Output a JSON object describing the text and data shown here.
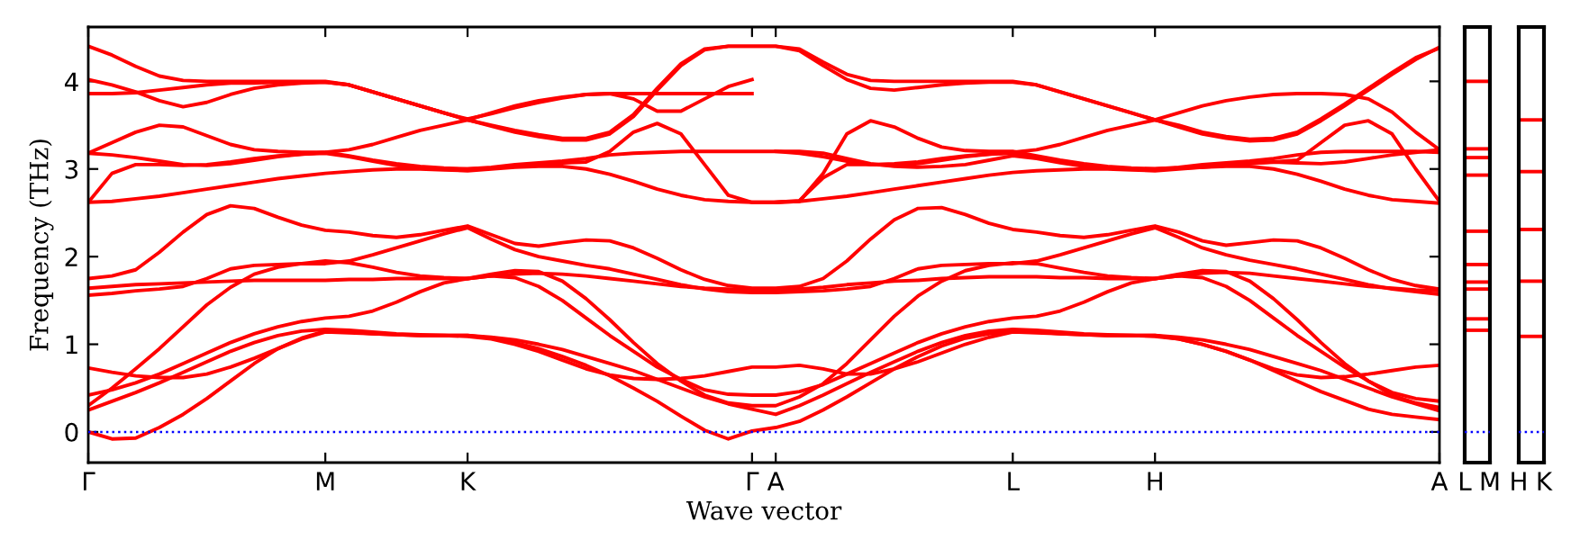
{
  "chart_data": [
    {
      "type": "line",
      "xlabel": "Wave vector",
      "ylabel": "Frequency (THz)",
      "ylim": [
        -0.35,
        4.62
      ],
      "yticks": [
        0,
        1,
        2,
        3,
        4
      ],
      "categories": [
        "Γ",
        null,
        null,
        null,
        null,
        null,
        null,
        null,
        null,
        null,
        "M",
        null,
        null,
        null,
        null,
        null,
        "K",
        null,
        null,
        null,
        null,
        null,
        null,
        null,
        null,
        null,
        null,
        null,
        "Γ",
        "A",
        null,
        null,
        null,
        null,
        null,
        null,
        null,
        null,
        null,
        "L",
        null,
        null,
        null,
        null,
        null,
        "H",
        null,
        null,
        null,
        null,
        null,
        null,
        null,
        null,
        null,
        null,
        null,
        "A"
      ],
      "ref_lines": [
        {
          "axis": "y",
          "value": 0,
          "color": "#0000ff",
          "line_style": "dotted"
        }
      ],
      "series": [
        {
          "color": "#ff0000",
          "values": [
            4.4,
            4.3,
            4.17,
            4.06,
            4.01,
            4.0,
            4.0,
            4.0,
            4.0,
            4.0,
            4.0,
            3.96,
            3.88,
            3.8,
            3.72,
            3.64,
            3.56,
            3.49,
            3.42,
            3.37,
            3.33,
            3.33,
            3.4,
            3.6,
            3.9,
            4.18,
            4.36,
            4.4,
            4.4,
            4.4,
            4.37,
            4.22,
            4.08,
            4.01,
            4.0,
            4.0,
            4.0,
            4.0,
            4.0,
            4.0,
            3.96,
            3.88,
            3.8,
            3.72,
            3.64,
            3.56,
            3.48,
            3.4,
            3.35,
            3.32,
            3.33,
            3.4,
            3.55,
            3.72,
            3.9,
            4.08,
            4.25,
            4.39
          ]
        },
        {
          "color": "#ff0000",
          "values": [
            4.02,
            3.96,
            3.88,
            3.78,
            3.71,
            3.76,
            3.85,
            3.92,
            3.96,
            3.98,
            3.99,
            3.96,
            3.88,
            3.8,
            3.72,
            3.64,
            3.56,
            3.5,
            3.44,
            3.39,
            3.35,
            3.35,
            3.42,
            3.62,
            3.92,
            4.2,
            4.37,
            4.4,
            4.4,
            4.4,
            4.35,
            4.18,
            4.02,
            3.92,
            3.9,
            3.93,
            3.96,
            3.98,
            3.99,
            3.99,
            3.96,
            3.88,
            3.8,
            3.72,
            3.64,
            3.56,
            3.5,
            3.42,
            3.37,
            3.34,
            3.35,
            3.42,
            3.57,
            3.74,
            3.92,
            4.1,
            4.27,
            4.38
          ]
        },
        {
          "color": "#ff0000",
          "values": [
            3.86,
            3.86,
            3.87,
            3.9,
            3.93,
            3.96,
            3.98,
            3.98,
            3.99,
            3.99,
            3.99,
            3.96,
            3.88,
            3.8,
            3.72,
            3.64,
            3.57,
            3.63,
            3.7,
            3.76,
            3.81,
            3.85,
            3.86,
            3.8,
            3.66,
            3.66,
            3.8,
            3.94,
            4.02,
            null,
            null,
            null,
            null,
            null,
            null,
            null,
            null,
            null,
            null,
            null,
            null,
            null,
            null,
            null,
            null,
            null,
            null,
            null,
            null,
            null,
            null,
            null,
            null,
            null,
            null,
            null,
            null,
            null
          ]
        },
        {
          "color": "#ff0000",
          "values": [
            3.18,
            3.16,
            3.13,
            3.09,
            3.05,
            3.04,
            3.06,
            3.1,
            3.14,
            3.17,
            3.19,
            3.22,
            3.28,
            3.36,
            3.44,
            3.5,
            3.56,
            3.64,
            3.72,
            3.78,
            3.82,
            3.85,
            3.86,
            3.86,
            3.86,
            3.86,
            3.86,
            3.86,
            3.86,
            null,
            null,
            null,
            null,
            null,
            null,
            null,
            null,
            null,
            null,
            null,
            null,
            null,
            null,
            null,
            null,
            null,
            null,
            null,
            null,
            null,
            null,
            null,
            null,
            null,
            null,
            null,
            null,
            null
          ]
        },
        {
          "color": "#ff0000",
          "values": [
            null,
            null,
            null,
            null,
            null,
            null,
            null,
            null,
            null,
            null,
            null,
            null,
            null,
            null,
            null,
            null,
            null,
            null,
            null,
            null,
            null,
            null,
            null,
            null,
            null,
            null,
            null,
            null,
            null,
            2.62,
            2.63,
            2.95,
            3.4,
            3.55,
            3.48,
            3.35,
            3.25,
            3.21,
            3.2,
            3.2,
            3.15,
            3.1,
            3.06,
            3.03,
            3.01,
            3.0,
            3.01,
            3.03,
            3.05,
            3.07,
            3.08,
            3.1,
            3.3,
            3.5,
            3.55,
            3.4,
            3.0,
            2.63
          ]
        },
        {
          "color": "#ff0000",
          "values": [
            null,
            null,
            null,
            null,
            null,
            null,
            null,
            null,
            null,
            null,
            null,
            null,
            null,
            null,
            null,
            null,
            null,
            null,
            null,
            null,
            null,
            null,
            null,
            null,
            null,
            null,
            null,
            null,
            null,
            3.2,
            3.18,
            3.14,
            3.09,
            3.05,
            3.04,
            3.06,
            3.1,
            3.14,
            3.17,
            3.19,
            3.22,
            3.28,
            3.36,
            3.44,
            3.5,
            3.56,
            3.64,
            3.72,
            3.78,
            3.82,
            3.85,
            3.86,
            3.86,
            3.85,
            3.8,
            3.65,
            3.42,
            3.22
          ]
        },
        {
          "color": "#ff0000",
          "values": [
            3.18,
            3.3,
            3.42,
            3.5,
            3.48,
            3.38,
            3.28,
            3.22,
            3.2,
            3.19,
            3.19,
            3.15,
            3.1,
            3.06,
            3.03,
            3.01,
            3.0,
            3.01,
            3.03,
            3.05,
            3.07,
            3.08,
            3.2,
            3.42,
            3.52,
            3.4,
            3.05,
            2.7,
            2.62,
            2.62,
            2.64,
            2.9,
            3.05,
            3.05,
            3.06,
            3.08,
            3.12,
            3.15,
            3.17,
            3.18,
            3.14,
            3.09,
            3.04,
            3.01,
            3.0,
            3.0,
            3.02,
            3.05,
            3.07,
            3.09,
            3.12,
            3.16,
            3.19,
            3.2,
            3.2,
            3.2,
            3.2,
            3.19
          ]
        },
        {
          "color": "#ff0000",
          "values": [
            2.62,
            2.95,
            3.05,
            3.05,
            3.04,
            3.05,
            3.08,
            3.12,
            3.15,
            3.17,
            3.18,
            3.14,
            3.09,
            3.04,
            3.01,
            3.0,
            3.0,
            3.02,
            3.05,
            3.07,
            3.09,
            3.12,
            3.16,
            3.18,
            3.19,
            3.2,
            3.2,
            3.2,
            3.2,
            3.2,
            3.2,
            3.18,
            3.12,
            3.06,
            3.03,
            3.02,
            3.03,
            3.05,
            3.1,
            3.15,
            3.12,
            3.07,
            3.03,
            3.01,
            3.0,
            3.0,
            3.01,
            3.02,
            3.04,
            3.06,
            3.08,
            3.07,
            3.06,
            3.08,
            3.12,
            3.16,
            3.19,
            3.22
          ]
        },
        {
          "color": "#ff0000",
          "values": [
            2.62,
            2.63,
            2.66,
            2.69,
            2.73,
            2.77,
            2.81,
            2.85,
            2.89,
            2.92,
            2.95,
            2.97,
            2.99,
            3.0,
            3.0,
            2.99,
            2.98,
            3.0,
            3.02,
            3.03,
            3.03,
            3.0,
            2.94,
            2.86,
            2.77,
            2.7,
            2.65,
            2.63,
            2.62,
            2.62,
            2.63,
            2.66,
            2.69,
            2.73,
            2.77,
            2.81,
            2.85,
            2.89,
            2.93,
            2.96,
            2.98,
            2.99,
            3.0,
            3.0,
            2.99,
            2.98,
            3.0,
            3.02,
            3.03,
            3.03,
            3.0,
            2.94,
            2.86,
            2.77,
            2.7,
            2.65,
            2.63,
            2.61
          ]
        },
        {
          "color": "#ff0000",
          "values": [
            1.75,
            1.78,
            1.85,
            2.05,
            2.28,
            2.48,
            2.58,
            2.55,
            2.45,
            2.36,
            2.3,
            2.28,
            2.24,
            2.22,
            2.25,
            2.3,
            2.35,
            2.25,
            2.15,
            2.12,
            2.16,
            2.19,
            2.18,
            2.1,
            1.98,
            1.85,
            1.74,
            1.67,
            1.64,
            1.64,
            1.66,
            1.75,
            1.95,
            2.2,
            2.42,
            2.55,
            2.56,
            2.48,
            2.38,
            2.31,
            2.28,
            2.24,
            2.22,
            2.25,
            2.3,
            2.35,
            2.28,
            2.18,
            2.13,
            2.16,
            2.19,
            2.18,
            2.1,
            1.98,
            1.85,
            1.74,
            1.67,
            1.63
          ]
        },
        {
          "color": "#ff0000",
          "values": [
            1.56,
            1.58,
            1.61,
            1.63,
            1.66,
            1.75,
            1.86,
            1.9,
            1.91,
            1.92,
            1.92,
            1.95,
            2.02,
            2.1,
            2.18,
            2.26,
            2.33,
            2.2,
            2.08,
            2.0,
            1.95,
            1.9,
            1.86,
            1.8,
            1.74,
            1.68,
            1.63,
            1.6,
            1.59,
            1.59,
            1.6,
            1.61,
            1.63,
            1.66,
            1.75,
            1.86,
            1.9,
            1.91,
            1.92,
            1.92,
            1.95,
            2.02,
            2.1,
            2.18,
            2.26,
            2.33,
            2.22,
            2.1,
            2.02,
            1.96,
            1.91,
            1.86,
            1.8,
            1.74,
            1.68,
            1.63,
            1.6,
            1.57
          ]
        },
        {
          "color": "#ff0000",
          "values": [
            1.64,
            1.66,
            1.68,
            1.69,
            1.7,
            1.71,
            1.72,
            1.73,
            1.73,
            1.73,
            1.73,
            1.74,
            1.74,
            1.75,
            1.75,
            1.75,
            1.75,
            1.78,
            1.8,
            1.81,
            1.8,
            1.78,
            1.75,
            1.72,
            1.69,
            1.66,
            1.64,
            1.63,
            1.62,
            1.62,
            1.63,
            1.65,
            1.68,
            1.7,
            1.72,
            1.73,
            1.75,
            1.76,
            1.77,
            1.77,
            1.77,
            1.76,
            1.76,
            1.75,
            1.75,
            1.75,
            1.78,
            1.81,
            1.82,
            1.81,
            1.78,
            1.75,
            1.72,
            1.69,
            1.66,
            1.64,
            1.62,
            1.61
          ]
        },
        {
          "color": "#ff0000",
          "values": [
            0.3,
            0.5,
            0.72,
            0.95,
            1.2,
            1.45,
            1.65,
            1.8,
            1.88,
            1.92,
            1.95,
            1.93,
            1.88,
            1.82,
            1.78,
            1.76,
            1.75,
            1.8,
            1.84,
            1.83,
            1.72,
            1.52,
            1.28,
            1.02,
            0.78,
            0.58,
            0.42,
            0.33,
            0.3,
            0.3,
            0.4,
            0.55,
            0.78,
            1.05,
            1.32,
            1.55,
            1.72,
            1.84,
            1.9,
            1.93,
            1.92,
            1.87,
            1.82,
            1.78,
            1.76,
            1.75,
            1.8,
            1.84,
            1.83,
            1.72,
            1.52,
            1.28,
            1.02,
            0.78,
            0.58,
            0.42,
            0.33,
            0.28
          ]
        },
        {
          "color": "#ff0000",
          "values": [
            0.42,
            0.48,
            0.56,
            0.66,
            0.78,
            0.9,
            1.02,
            1.12,
            1.2,
            1.26,
            1.3,
            1.32,
            1.38,
            1.48,
            1.6,
            1.7,
            1.75,
            1.78,
            1.76,
            1.66,
            1.5,
            1.3,
            1.1,
            0.92,
            0.74,
            0.6,
            0.48,
            0.43,
            0.42,
            0.42,
            0.46,
            0.54,
            0.66,
            0.78,
            0.9,
            1.02,
            1.12,
            1.2,
            1.26,
            1.3,
            1.32,
            1.38,
            1.48,
            1.6,
            1.7,
            1.75,
            1.78,
            1.76,
            1.66,
            1.5,
            1.3,
            1.1,
            0.92,
            0.74,
            0.58,
            0.45,
            0.38,
            0.35
          ]
        },
        {
          "color": "#ff0000",
          "values": [
            0.25,
            0.35,
            0.45,
            0.56,
            0.68,
            0.8,
            0.92,
            1.02,
            1.1,
            1.15,
            1.17,
            1.16,
            1.14,
            1.12,
            1.11,
            1.1,
            1.1,
            1.08,
            1.05,
            1.0,
            0.94,
            0.86,
            0.78,
            0.7,
            0.6,
            0.5,
            0.4,
            0.32,
            0.26,
            0.2,
            0.3,
            0.42,
            0.55,
            0.68,
            0.8,
            0.92,
            1.02,
            1.1,
            1.15,
            1.17,
            1.16,
            1.14,
            1.12,
            1.11,
            1.1,
            1.1,
            1.08,
            1.05,
            1.0,
            0.94,
            0.86,
            0.78,
            0.7,
            0.6,
            0.5,
            0.4,
            0.32,
            0.24
          ]
        },
        {
          "color": "#ff0000",
          "values": [
            0.0,
            -0.08,
            -0.07,
            0.05,
            0.2,
            0.38,
            0.58,
            0.78,
            0.95,
            1.07,
            1.15,
            1.14,
            1.12,
            1.11,
            1.1,
            1.1,
            1.1,
            1.07,
            1.02,
            0.95,
            0.86,
            0.76,
            0.64,
            0.5,
            0.35,
            0.18,
            0.02,
            -0.08,
            0.01,
            0.05,
            0.12,
            0.25,
            0.4,
            0.56,
            0.72,
            0.86,
            0.98,
            1.07,
            1.12,
            1.15,
            1.14,
            1.12,
            1.11,
            1.1,
            1.1,
            1.1,
            1.06,
            1.0,
            0.92,
            0.82,
            0.7,
            0.58,
            0.46,
            0.36,
            0.26,
            0.2,
            0.17,
            0.14
          ]
        },
        {
          "color": "#ff0000",
          "values": [
            0.73,
            0.68,
            0.64,
            0.62,
            0.62,
            0.66,
            0.74,
            0.84,
            0.95,
            1.06,
            1.14,
            1.13,
            1.12,
            1.11,
            1.1,
            1.1,
            1.09,
            1.06,
            1.0,
            0.92,
            0.82,
            0.72,
            0.65,
            0.61,
            0.6,
            0.61,
            0.64,
            0.69,
            0.74,
            0.74,
            0.76,
            0.72,
            0.66,
            0.66,
            0.72,
            0.8,
            0.9,
            1.0,
            1.08,
            1.14,
            1.13,
            1.12,
            1.11,
            1.1,
            1.1,
            1.09,
            1.06,
            1.0,
            0.92,
            0.82,
            0.72,
            0.65,
            0.62,
            0.63,
            0.66,
            0.7,
            0.74,
            0.76
          ]
        }
      ]
    },
    {
      "type": "line",
      "tick_labels": "x",
      "ylim": [
        -0.35,
        4.62
      ],
      "categories": [
        "L",
        "M"
      ],
      "ref_lines": [
        {
          "axis": "y",
          "value": 0,
          "color": "#0000ff",
          "line_style": "dotted"
        }
      ],
      "series": [
        {
          "color": "#ff0000",
          "values": [
            4.0,
            4.0
          ]
        },
        {
          "color": "#ff0000",
          "values": [
            3.23,
            3.23
          ]
        },
        {
          "color": "#ff0000",
          "values": [
            3.13,
            3.13
          ]
        },
        {
          "color": "#ff0000",
          "values": [
            2.93,
            2.93
          ]
        },
        {
          "color": "#ff0000",
          "values": [
            2.29,
            2.29
          ]
        },
        {
          "color": "#ff0000",
          "values": [
            1.91,
            1.91
          ]
        },
        {
          "color": "#ff0000",
          "values": [
            1.71,
            1.71
          ]
        },
        {
          "color": "#ff0000",
          "values": [
            1.63,
            1.63
          ]
        },
        {
          "color": "#ff0000",
          "values": [
            1.29,
            1.29
          ]
        },
        {
          "color": "#ff0000",
          "values": [
            1.16,
            1.16
          ]
        }
      ]
    },
    {
      "type": "line",
      "tick_labels": "x",
      "ylim": [
        -0.35,
        4.62
      ],
      "categories": [
        "H",
        "K"
      ],
      "ref_lines": [
        {
          "axis": "y",
          "value": 0,
          "color": "#0000ff",
          "line_style": "dotted"
        }
      ],
      "series": [
        {
          "color": "#ff0000",
          "values": [
            3.56,
            3.56
          ]
        },
        {
          "color": "#ff0000",
          "values": [
            2.97,
            2.97
          ]
        },
        {
          "color": "#ff0000",
          "values": [
            2.31,
            2.31
          ]
        },
        {
          "color": "#ff0000",
          "values": [
            1.72,
            1.72
          ]
        },
        {
          "color": "#ff0000",
          "values": [
            1.09,
            1.09
          ]
        }
      ]
    }
  ]
}
